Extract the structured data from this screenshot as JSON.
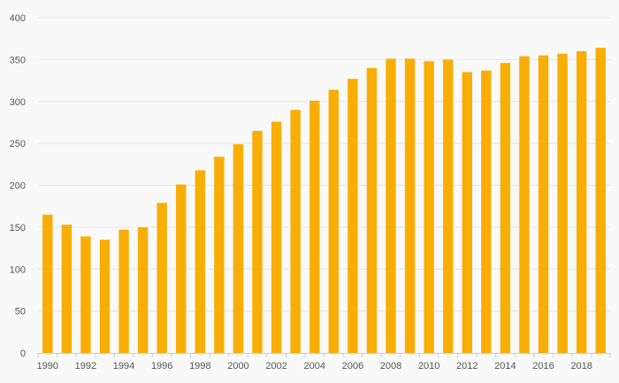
{
  "chart_data": {
    "type": "bar",
    "title": "",
    "xlabel": "",
    "ylabel": "",
    "ylim": [
      0,
      400
    ],
    "yticks": [
      0,
      50,
      100,
      150,
      200,
      250,
      300,
      350,
      400
    ],
    "categories": [
      "1990",
      "1991",
      "1992",
      "1993",
      "1994",
      "1995",
      "1996",
      "1997",
      "1998",
      "1999",
      "2000",
      "2001",
      "2002",
      "2003",
      "2004",
      "2005",
      "2006",
      "2007",
      "2008",
      "2009",
      "2010",
      "2011",
      "2012",
      "2013",
      "2014",
      "2015",
      "2016",
      "2017",
      "2018",
      "2019"
    ],
    "x_tick_labels": [
      "1990",
      "1992",
      "1994",
      "1996",
      "1998",
      "2000",
      "2002",
      "2004",
      "2006",
      "2008",
      "2010",
      "2012",
      "2014",
      "2016",
      "2018"
    ],
    "values": [
      165,
      153,
      139,
      135,
      147,
      150,
      179,
      201,
      218,
      234,
      249,
      265,
      276,
      290,
      301,
      314,
      327,
      340,
      351,
      351,
      348,
      350,
      335,
      337,
      346,
      354,
      355,
      357,
      360,
      364
    ],
    "grid": true,
    "bar_color": "#f9ae06"
  }
}
